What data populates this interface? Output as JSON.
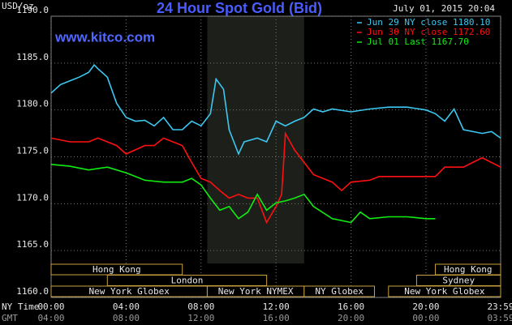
{
  "chart_data": {
    "type": "line",
    "title": "24 Hour Spot Gold (Bid)",
    "timestamp": "July 01, 2015 20:04",
    "watermark": "www.kitco.com",
    "ylabel": "USD/oz",
    "xlabel": "NY Time",
    "x2label": "GMT",
    "xlim": [
      0,
      23.983
    ],
    "ylim": [
      1160,
      1190
    ],
    "yticks": [
      {
        "value": 1160,
        "label": "1160.0"
      },
      {
        "value": 1165,
        "label": "1165.0"
      },
      {
        "value": 1170,
        "label": "1170.0"
      },
      {
        "value": 1175,
        "label": "1175.0"
      },
      {
        "value": 1180,
        "label": "1180.0"
      },
      {
        "value": 1185,
        "label": "1185.0"
      },
      {
        "value": 1190,
        "label": "1190.0"
      }
    ],
    "xticks": [
      {
        "value": 0,
        "label": "00:00"
      },
      {
        "value": 4,
        "label": "04:00"
      },
      {
        "value": 8,
        "label": "08:00"
      },
      {
        "value": 12,
        "label": "12:00"
      },
      {
        "value": 16,
        "label": "16:00"
      },
      {
        "value": 20,
        "label": "20:00"
      },
      {
        "value": 23.983,
        "label": "23:59"
      }
    ],
    "x2ticks": [
      "04:00",
      "08:00",
      "12:00",
      "16:00",
      "20:00",
      "00:00",
      "03:59"
    ],
    "grid": true,
    "shaded": [
      8.33,
      13.5
    ],
    "sessions": [
      {
        "name": "Hong Kong",
        "row": 0,
        "start": 0,
        "end": 7
      },
      {
        "name": "Hong Kong",
        "row": 0,
        "start": 20.5,
        "end": 23.983
      },
      {
        "name": "London",
        "row": 1,
        "start": 3,
        "end": 11.5
      },
      {
        "name": "Sydney",
        "row": 1,
        "start": 19.5,
        "end": 23.983
      },
      {
        "name": "New York Globex",
        "row": 2,
        "start": 0,
        "end": 8.33
      },
      {
        "name": "New York NYMEX",
        "row": 2,
        "start": 8.33,
        "end": 13.5
      },
      {
        "name": "NY Globex",
        "row": 2,
        "start": 13.5,
        "end": 17.25
      },
      {
        "name": "New York Globex",
        "row": 2,
        "start": 18,
        "end": 23.983
      }
    ],
    "series": [
      {
        "name": "Jun 29 NY close 1180.10",
        "color": "#3cc8f0",
        "x": [
          0,
          0.5,
          1,
          1.5,
          2,
          2.3,
          2.5,
          3,
          3.5,
          4,
          4.5,
          5,
          5.5,
          6,
          6.5,
          7,
          7.5,
          8,
          8.5,
          8.8,
          9.2,
          9.5,
          10,
          10.3,
          11,
          11.5,
          12,
          12.5,
          13,
          13.5,
          14,
          14.5,
          15,
          16,
          17,
          18,
          19,
          20,
          20.5,
          21,
          21.5,
          22,
          23,
          23.5,
          23.983
        ],
        "values": [
          1181.8,
          1182.7,
          1183.1,
          1183.5,
          1184.0,
          1184.8,
          1184.4,
          1183.5,
          1180.7,
          1179.2,
          1178.8,
          1178.9,
          1178.3,
          1179.2,
          1177.9,
          1177.9,
          1178.8,
          1178.3,
          1179.6,
          1183.3,
          1182.2,
          1177.9,
          1175.3,
          1176.6,
          1177.0,
          1176.6,
          1178.8,
          1178.3,
          1178.8,
          1179.2,
          1180.1,
          1179.8,
          1180.1,
          1179.8,
          1180.1,
          1180.3,
          1180.3,
          1180.0,
          1179.6,
          1178.8,
          1180.1,
          1177.9,
          1177.5,
          1177.7,
          1177.0
        ]
      },
      {
        "name": "Jun 30 NY close 1172.60",
        "color": "#ff1010",
        "x": [
          0,
          1,
          2,
          2.5,
          3,
          3.5,
          4,
          5,
          5.5,
          6,
          7,
          7.5,
          8,
          8.5,
          9,
          9.5,
          10,
          10.5,
          11,
          11.5,
          12,
          12.3,
          12.5,
          13,
          13.5,
          14,
          15,
          15.5,
          16,
          17,
          17.5,
          18,
          19,
          20,
          20.5,
          21,
          22,
          22.5,
          23,
          23.983
        ],
        "values": [
          1177.0,
          1176.6,
          1176.6,
          1177.0,
          1176.6,
          1176.2,
          1175.3,
          1176.2,
          1176.2,
          1177.0,
          1176.2,
          1174.4,
          1172.7,
          1172.3,
          1171.4,
          1170.6,
          1171.0,
          1170.6,
          1170.6,
          1168.0,
          1169.7,
          1171.0,
          1177.5,
          1175.7,
          1174.4,
          1173.1,
          1172.3,
          1171.4,
          1172.3,
          1172.5,
          1172.9,
          1172.9,
          1172.9,
          1172.9,
          1172.9,
          1173.9,
          1173.9,
          1174.4,
          1174.9,
          1173.9
        ]
      },
      {
        "name": "Jul 01 Last 1167.70",
        "color": "#10ee10",
        "x": [
          0,
          1,
          2,
          3,
          4,
          5,
          6,
          7,
          7.5,
          8,
          8.5,
          9,
          9.5,
          10,
          10.5,
          11,
          11.5,
          12,
          12.5,
          13,
          13.5,
          14,
          15,
          16,
          16.5,
          17,
          18,
          19,
          20,
          20.5
        ],
        "values": [
          1174.2,
          1174.0,
          1173.6,
          1173.9,
          1173.3,
          1172.5,
          1172.3,
          1172.3,
          1172.7,
          1172.0,
          1170.6,
          1169.3,
          1169.7,
          1168.4,
          1169.1,
          1171.0,
          1169.3,
          1170.1,
          1170.3,
          1170.6,
          1171.0,
          1169.7,
          1168.4,
          1168.0,
          1169.1,
          1168.4,
          1168.6,
          1168.6,
          1168.4,
          1168.4
        ]
      }
    ]
  }
}
